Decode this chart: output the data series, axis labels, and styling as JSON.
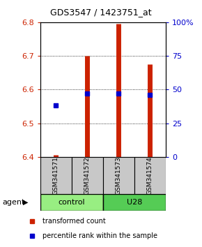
{
  "title": "GDS3547 / 1423751_at",
  "samples": [
    "GSM341571",
    "GSM341572",
    "GSM341573",
    "GSM341574"
  ],
  "transformed_counts": [
    6.405,
    6.7,
    6.795,
    6.675
  ],
  "transformed_base": 6.4,
  "percentile_ranks_pct": [
    38,
    47,
    47,
    46
  ],
  "ylim": [
    6.4,
    6.8
  ],
  "right_ylim": [
    0,
    100
  ],
  "right_yticks": [
    0,
    25,
    50,
    75,
    100
  ],
  "right_yticklabels": [
    "0",
    "25",
    "50",
    "75",
    "100%"
  ],
  "left_yticks": [
    6.4,
    6.5,
    6.6,
    6.7,
    6.8
  ],
  "bar_color": "#CC2200",
  "dot_color": "#0000CC",
  "sample_box_color": "#C8C8C8",
  "control_color": "#98EE82",
  "u28_color": "#55CC55",
  "agent_label": "agent",
  "left_tick_color": "#CC2200",
  "right_tick_color": "#0000CC",
  "legend_items": [
    {
      "color": "#CC2200",
      "label": "transformed count"
    },
    {
      "color": "#0000CC",
      "label": "percentile rank within the sample"
    }
  ]
}
